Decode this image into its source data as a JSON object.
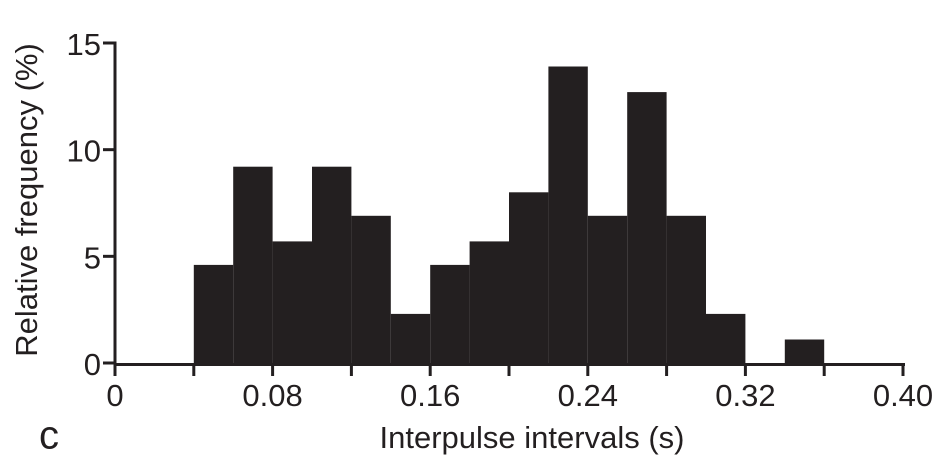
{
  "figure": {
    "panel_label": "c"
  },
  "colors": {
    "ink": "#231f20",
    "background": "#ffffff"
  },
  "chart_data": {
    "type": "bar",
    "subtype": "histogram",
    "title": "",
    "xlabel": "Interpulse intervals (s)",
    "ylabel": "Relative frequency (%)",
    "xlim": [
      0,
      0.4
    ],
    "ylim": [
      0,
      15
    ],
    "bin_start": 0.04,
    "bin_width": 0.02,
    "values": [
      4.6,
      9.2,
      5.7,
      9.2,
      6.9,
      2.3,
      4.6,
      5.7,
      8.0,
      13.9,
      6.9,
      12.7,
      6.9,
      2.3,
      0,
      1.1,
      0,
      0
    ],
    "bar_color": "#231f20",
    "x_ticks": {
      "major": [
        0,
        0.08,
        0.16,
        0.24,
        0.32,
        0.4
      ],
      "major_labels": [
        "0",
        "0.08",
        "0.16",
        "0.24",
        "0.32",
        "0.40"
      ],
      "minor_step": 0.04
    },
    "y_ticks": {
      "values": [
        0,
        5,
        10,
        15
      ],
      "labels": [
        "0",
        "5",
        "10",
        "15"
      ]
    },
    "grid": false,
    "legend": "none"
  }
}
